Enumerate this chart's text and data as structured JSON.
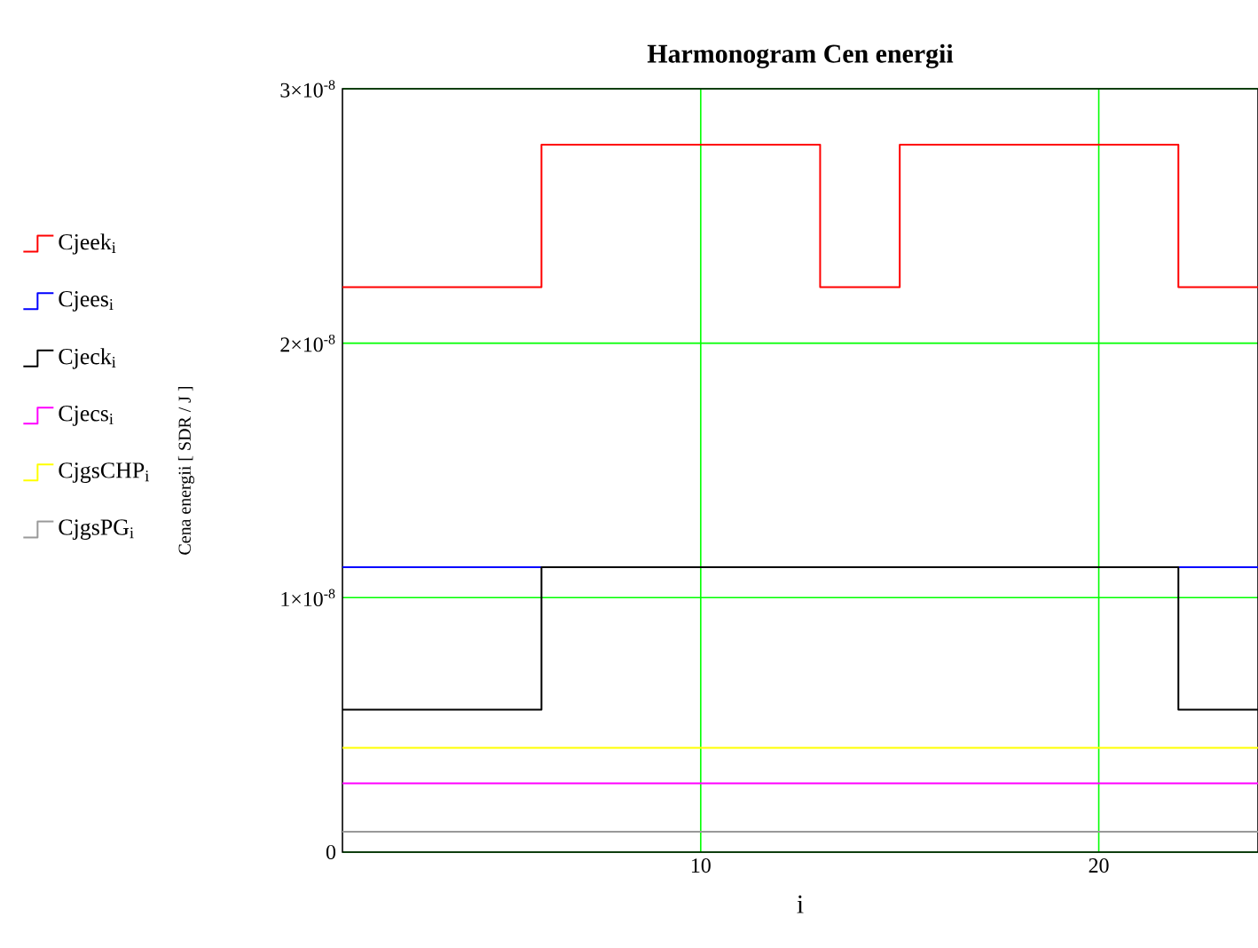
{
  "chart_data": {
    "type": "step",
    "title": "Harmonogram Cen energii",
    "xlabel": "i",
    "ylabel": "Cena energii [ SDR / J ]",
    "x": [
      1,
      2,
      3,
      4,
      5,
      6,
      7,
      8,
      9,
      10,
      11,
      12,
      13,
      14,
      15,
      16,
      17,
      18,
      19,
      20,
      21,
      22,
      23,
      24
    ],
    "series": [
      {
        "name": "Cjeek$_{i}$",
        "color": "#ff0000",
        "values": [
          2.22e-08,
          2.22e-08,
          2.22e-08,
          2.22e-08,
          2.22e-08,
          2.78e-08,
          2.78e-08,
          2.78e-08,
          2.78e-08,
          2.78e-08,
          2.78e-08,
          2.78e-08,
          2.22e-08,
          2.22e-08,
          2.78e-08,
          2.78e-08,
          2.78e-08,
          2.78e-08,
          2.78e-08,
          2.78e-08,
          2.78e-08,
          2.22e-08,
          2.22e-08,
          2.22e-08
        ]
      },
      {
        "name": "Cjees$_{i}$",
        "color": "#0000ff",
        "values": [
          1.12e-08,
          1.12e-08,
          1.12e-08,
          1.12e-08,
          1.12e-08,
          1.12e-08,
          null,
          null,
          null,
          null,
          null,
          null,
          null,
          null,
          null,
          null,
          null,
          null,
          null,
          null,
          null,
          1.12e-08,
          1.12e-08,
          1.12e-08
        ]
      },
      {
        "name": "Cjeck$_{i}$",
        "color": "#000000",
        "values": [
          5.6e-09,
          5.6e-09,
          5.6e-09,
          5.6e-09,
          5.6e-09,
          1.12e-08,
          1.12e-08,
          1.12e-08,
          1.12e-08,
          1.12e-08,
          1.12e-08,
          1.12e-08,
          1.12e-08,
          1.12e-08,
          1.12e-08,
          1.12e-08,
          1.12e-08,
          1.12e-08,
          1.12e-08,
          1.12e-08,
          1.12e-08,
          5.6e-09,
          5.6e-09,
          5.6e-09
        ]
      },
      {
        "name": "Cjecs$_{i}$",
        "color": "#ff00ff",
        "values": [
          2.7e-09,
          2.7e-09,
          2.7e-09,
          2.7e-09,
          2.7e-09,
          2.7e-09,
          2.7e-09,
          2.7e-09,
          2.7e-09,
          2.7e-09,
          2.7e-09,
          2.7e-09,
          2.7e-09,
          2.7e-09,
          2.7e-09,
          2.7e-09,
          2.7e-09,
          2.7e-09,
          2.7e-09,
          2.7e-09,
          2.7e-09,
          2.7e-09,
          2.7e-09,
          2.7e-09
        ]
      },
      {
        "name": "CjgsCHP$_{i}$",
        "color": "#ffff00",
        "values": [
          4.1e-09,
          4.1e-09,
          4.1e-09,
          4.1e-09,
          4.1e-09,
          4.1e-09,
          4.1e-09,
          4.1e-09,
          4.1e-09,
          4.1e-09,
          4.1e-09,
          4.1e-09,
          4.1e-09,
          4.1e-09,
          4.1e-09,
          4.1e-09,
          4.1e-09,
          4.1e-09,
          4.1e-09,
          4.1e-09,
          4.1e-09,
          4.1e-09,
          4.1e-09,
          4.1e-09
        ]
      },
      {
        "name": "CjgsPG$_{i}$",
        "color": "#999999",
        "values": [
          8e-10,
          8e-10,
          8e-10,
          8e-10,
          8e-10,
          8e-10,
          8e-10,
          8e-10,
          8e-10,
          8e-10,
          8e-10,
          8e-10,
          8e-10,
          8e-10,
          8e-10,
          8e-10,
          8e-10,
          8e-10,
          8e-10,
          8e-10,
          8e-10,
          8e-10,
          8e-10,
          8e-10
        ]
      }
    ],
    "xlim": [
      1,
      24
    ],
    "xticks": [
      10,
      20
    ],
    "ylim": [
      0,
      3e-08
    ],
    "yticks": [
      0,
      {
        "value": 1e-08,
        "label": "1×10$^{-8}$"
      },
      {
        "value": 2e-08,
        "label": "2×10$^{-8}$"
      },
      {
        "value": 3e-08,
        "label": "3×10$^{-8}$"
      }
    ],
    "grid": true,
    "legend": "left",
    "marker": "none",
    "line_style": "solid"
  }
}
